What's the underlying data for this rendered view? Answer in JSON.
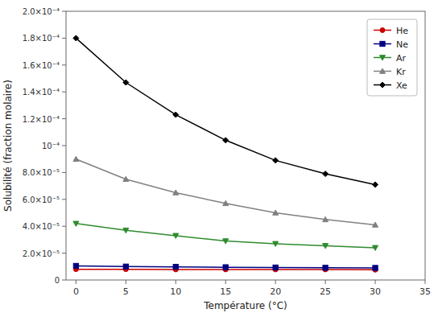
{
  "chart_data": {
    "type": "line",
    "xlabel": "Température (°C)",
    "ylabel": "Solubilité (fraction molaire)",
    "x": [
      0,
      5,
      10,
      15,
      20,
      25,
      30
    ],
    "series": [
      {
        "name": "He",
        "color": "#cc0000",
        "marker": "circle",
        "values": [
          8e-06,
          8e-06,
          7.8e-06,
          7.8e-06,
          7.8e-06,
          7.8e-06,
          7.6e-06
        ]
      },
      {
        "name": "Ne",
        "color": "#000080",
        "marker": "square",
        "values": [
          1.05e-05,
          1e-05,
          9.8e-06,
          9.5e-06,
          9.3e-06,
          9.1e-06,
          9e-06
        ]
      },
      {
        "name": "Ar",
        "color": "#2e8b2e",
        "marker": "triangle-down",
        "values": [
          4.2e-05,
          3.7e-05,
          3.3e-05,
          2.9e-05,
          2.7e-05,
          2.55e-05,
          2.4e-05
        ]
      },
      {
        "name": "Kr",
        "color": "#808080",
        "marker": "triangle-up",
        "values": [
          9e-05,
          7.5e-05,
          6.5e-05,
          5.7e-05,
          5e-05,
          4.5e-05,
          4.1e-05
        ]
      },
      {
        "name": "Xe",
        "color": "#000000",
        "marker": "diamond",
        "values": [
          0.00018,
          0.000147,
          0.000123,
          0.000104,
          8.9e-05,
          7.9e-05,
          7.1e-05
        ]
      }
    ],
    "xlim": [
      -1,
      35
    ],
    "ylim": [
      0,
      0.0002
    ],
    "xticks": [
      0,
      5,
      10,
      15,
      20,
      25,
      30,
      35
    ],
    "yticks": [
      0,
      {
        "value": 2e-05,
        "label": "2.0×10⁻⁵"
      },
      {
        "value": 4e-05,
        "label": "4.0×10⁻⁵"
      },
      {
        "value": 6e-05,
        "label": "6.0×10⁻⁵"
      },
      {
        "value": 8e-05,
        "label": "8.0×10⁻⁵"
      },
      {
        "value": 0.0001,
        "label": "10⁻⁴"
      },
      {
        "value": 0.00012,
        "label": "1.2×10⁻⁴"
      },
      {
        "value": 0.00014,
        "label": "1.4×10⁻⁴"
      },
      {
        "value": 0.00016,
        "label": "1.6×10⁻⁴"
      },
      {
        "value": 0.00018,
        "label": "1.8×10⁻⁴"
      },
      {
        "value": 0.0002,
        "label": "2.0×10⁻⁴"
      }
    ],
    "grid": false,
    "legend": "upper right"
  }
}
